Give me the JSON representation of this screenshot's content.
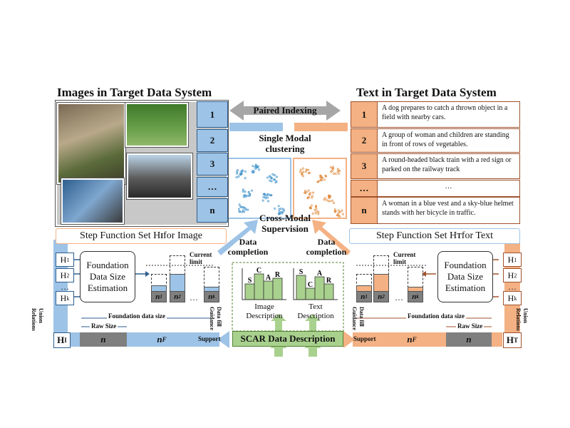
{
  "left_title": "Images in Target Data System",
  "right_title": "Text in Target Data System",
  "top": {
    "paired_indexing": "Paired Indexing",
    "single_modal": "Single Modal\nclustering",
    "cross_modal": "Cross-Modal\nSupervision"
  },
  "image_ids": [
    "1",
    "2",
    "3",
    "…",
    "n"
  ],
  "texts": [
    {
      "id": "1",
      "caption": "A dog prepares to catch a thrown object in a field with nearby cars."
    },
    {
      "id": "2",
      "caption": "A group of woman and children are standing in front of rows of vegetables."
    },
    {
      "id": "3",
      "caption": "A round-headed black train with a red sign or parked on the railway track"
    },
    {
      "id": "…",
      "caption": "…"
    },
    {
      "id": "n",
      "caption": "A woman in a blue vest and a sky-blue helmet stands with her bicycle in traffic."
    }
  ],
  "step_image": "Step Function Set H",
  "step_image_sub": "I",
  "step_image_tail": " for Image",
  "step_text": "Step Function Set H",
  "step_text_sub": "T",
  "step_text_tail": " for Text",
  "data_completion": "Data\ncompletion",
  "foundation_box": "Foundation\nData Size\nEstimation",
  "h_labels": [
    "H",
    "H",
    "…",
    "H"
  ],
  "h_subs": [
    "1",
    "2",
    "",
    "k"
  ],
  "current_limit": "Current\nlimit",
  "bar_labels": [
    "n",
    "n",
    "…",
    "n"
  ],
  "bar_subs": [
    "1",
    "2",
    "",
    "k"
  ],
  "foundation_data_size": "Foundation data size",
  "raw_size": "Raw Size",
  "n": "n",
  "nF": "n",
  "nF_sub": "F",
  "support": "Support",
  "union_relations": "Union\nRelations",
  "data_fill_guidance": "Data fill\nGuidance",
  "H_I": "H",
  "H_I_sub": "I",
  "H_T": "H",
  "H_T_sub": "T",
  "scar": "SCAR Data Description",
  "image_desc": "Image\nDescription",
  "text_desc": "Text\nDescription",
  "scar_letters_img": [
    "S",
    "C",
    "A",
    "R"
  ],
  "scar_letters_txt": [
    "S",
    "C",
    "A",
    "R"
  ],
  "colors": {
    "blue": "#9dc3e6",
    "orange": "#f4b183",
    "green": "#a9d18e",
    "gray": "#7f7f7f"
  }
}
